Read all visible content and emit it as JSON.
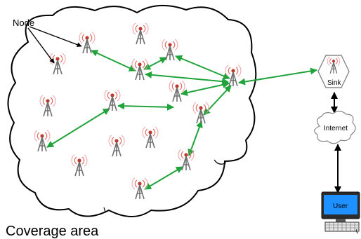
{
  "labels": {
    "node": "Node",
    "coverage": "Coverage area",
    "sink": "Sink",
    "internet": "Internet",
    "user": "User"
  },
  "colors": {
    "link": "#1fa33a",
    "tower": "#707070",
    "antenna": "#c0392b",
    "screen": "#1e90ff",
    "cloud_stroke": "#000000"
  },
  "icons": [
    "cell-tower-icon",
    "sink-hexagon-icon",
    "internet-cloud-icon",
    "computer-icon"
  ]
}
